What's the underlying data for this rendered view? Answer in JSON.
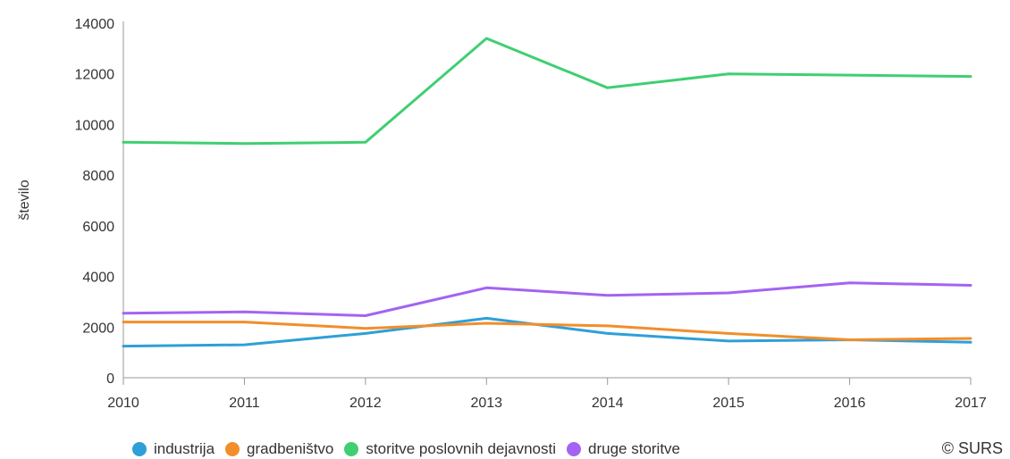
{
  "chart_data": {
    "type": "line",
    "x": [
      "2010",
      "2011",
      "2012",
      "2013",
      "2014",
      "2015",
      "2016",
      "2017"
    ],
    "ylabel": "število",
    "ylim": [
      0,
      14000
    ],
    "yticks": [
      "0",
      "2000",
      "4000",
      "6000",
      "8000",
      "10000",
      "12000",
      "14000"
    ],
    "grid": false,
    "legend_position": "bottom",
    "series": [
      {
        "name": "industrija",
        "color": "#2f9fd8",
        "values": [
          1250,
          1300,
          1750,
          2350,
          1750,
          1450,
          1500,
          1400
        ]
      },
      {
        "name": "gradbeništvo",
        "color": "#f28e2b",
        "values": [
          2200,
          2200,
          1950,
          2150,
          2050,
          1750,
          1500,
          1550
        ]
      },
      {
        "name": "storitve poslovnih dejavnosti",
        "color": "#3fcf72",
        "values": [
          9300,
          9250,
          9300,
          13400,
          11450,
          12000,
          11950,
          11900
        ]
      },
      {
        "name": "druge storitve",
        "color": "#a463f2",
        "values": [
          2550,
          2600,
          2450,
          3550,
          3250,
          3350,
          3750,
          3650
        ]
      }
    ]
  },
  "credit": "© SURS"
}
